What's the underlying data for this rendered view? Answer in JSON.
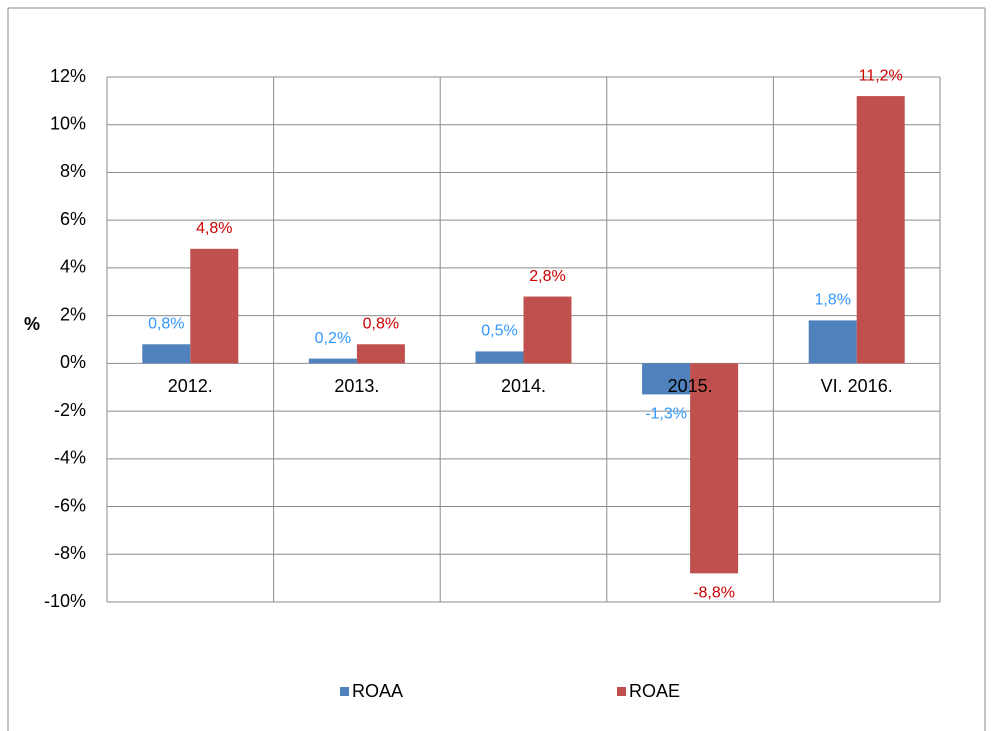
{
  "chart_data": {
    "type": "bar",
    "categories": [
      "2012.",
      "2013.",
      "2014.",
      "2015.",
      "VI. 2016."
    ],
    "series": [
      {
        "name": "ROAA",
        "color": "#4f81bd",
        "values": [
          0.8,
          0.2,
          0.5,
          -1.3,
          1.8
        ],
        "value_labels": [
          "0,8%",
          "0,2%",
          "0,5%",
          "-1,3%",
          "1,8%"
        ],
        "label_color": "#3399ff"
      },
      {
        "name": "ROAE",
        "color": "#c0504d",
        "values": [
          4.8,
          0.8,
          2.8,
          -8.8,
          11.2
        ],
        "value_labels": [
          "4,8%",
          "0,8%",
          "2,8%",
          "-8,8%",
          "11,2%"
        ],
        "label_color": "#cc0000"
      }
    ],
    "y_label": "%",
    "ylim": [
      -10,
      12
    ],
    "yticks": [
      {
        "value": -10,
        "label": "-10%"
      },
      {
        "value": -8,
        "label": "-8%"
      },
      {
        "value": -6,
        "label": "-6%"
      },
      {
        "value": -4,
        "label": "-4%"
      },
      {
        "value": -2,
        "label": "-2%"
      },
      {
        "value": 0,
        "label": "0%"
      },
      {
        "value": 2,
        "label": "2%"
      },
      {
        "value": 4,
        "label": "4%"
      },
      {
        "value": 6,
        "label": "6%"
      },
      {
        "value": 8,
        "label": "8%"
      },
      {
        "value": 10,
        "label": "10%"
      },
      {
        "value": 12,
        "label": "12%"
      }
    ],
    "grid": true,
    "legend": "bottom"
  }
}
